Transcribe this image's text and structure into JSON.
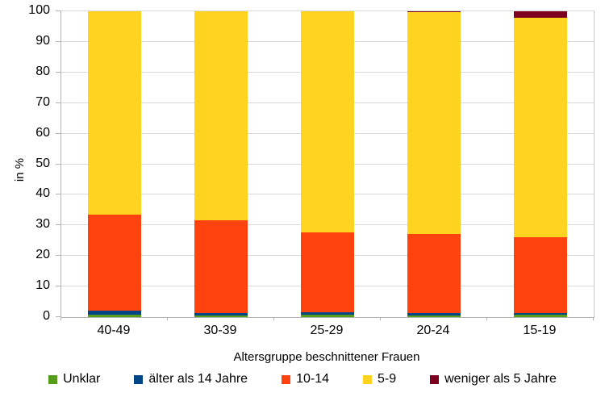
{
  "chart_data": {
    "type": "bar",
    "stacked": true,
    "title": "",
    "xlabel": "Altersgruppe beschnittener Frauen",
    "ylabel": "in %",
    "ylim": [
      0,
      100
    ],
    "y_ticks": [
      0,
      10,
      20,
      30,
      40,
      50,
      60,
      70,
      80,
      90,
      100
    ],
    "grid": true,
    "legend_position": "bottom",
    "categories": [
      "40-49",
      "30-39",
      "25-29",
      "20-24",
      "15-19"
    ],
    "series": [
      {
        "name": "Unklar",
        "color": "#579D1C",
        "values": [
          0.8,
          0.5,
          0.8,
          0.5,
          0.8
        ]
      },
      {
        "name": "älter als 14 Jahre",
        "color": "#004586",
        "values": [
          1.4,
          0.9,
          0.8,
          0.7,
          0.5
        ]
      },
      {
        "name": "10-14",
        "color": "#FF420E",
        "values": [
          31.3,
          30.4,
          26.1,
          26.0,
          24.9
        ]
      },
      {
        "name": "5-9",
        "color": "#FFD320",
        "values": [
          66.5,
          68.2,
          72.3,
          72.5,
          71.8
        ]
      },
      {
        "name": "weniger als 5 Jahre",
        "color": "#7E0021",
        "values": [
          0,
          0,
          0,
          0.3,
          2.0
        ]
      }
    ]
  },
  "style_colors": {
    "gridline": "#d9d9d9",
    "axis": "#b3b3b3",
    "background": "#ffffff",
    "text": "#000000"
  }
}
